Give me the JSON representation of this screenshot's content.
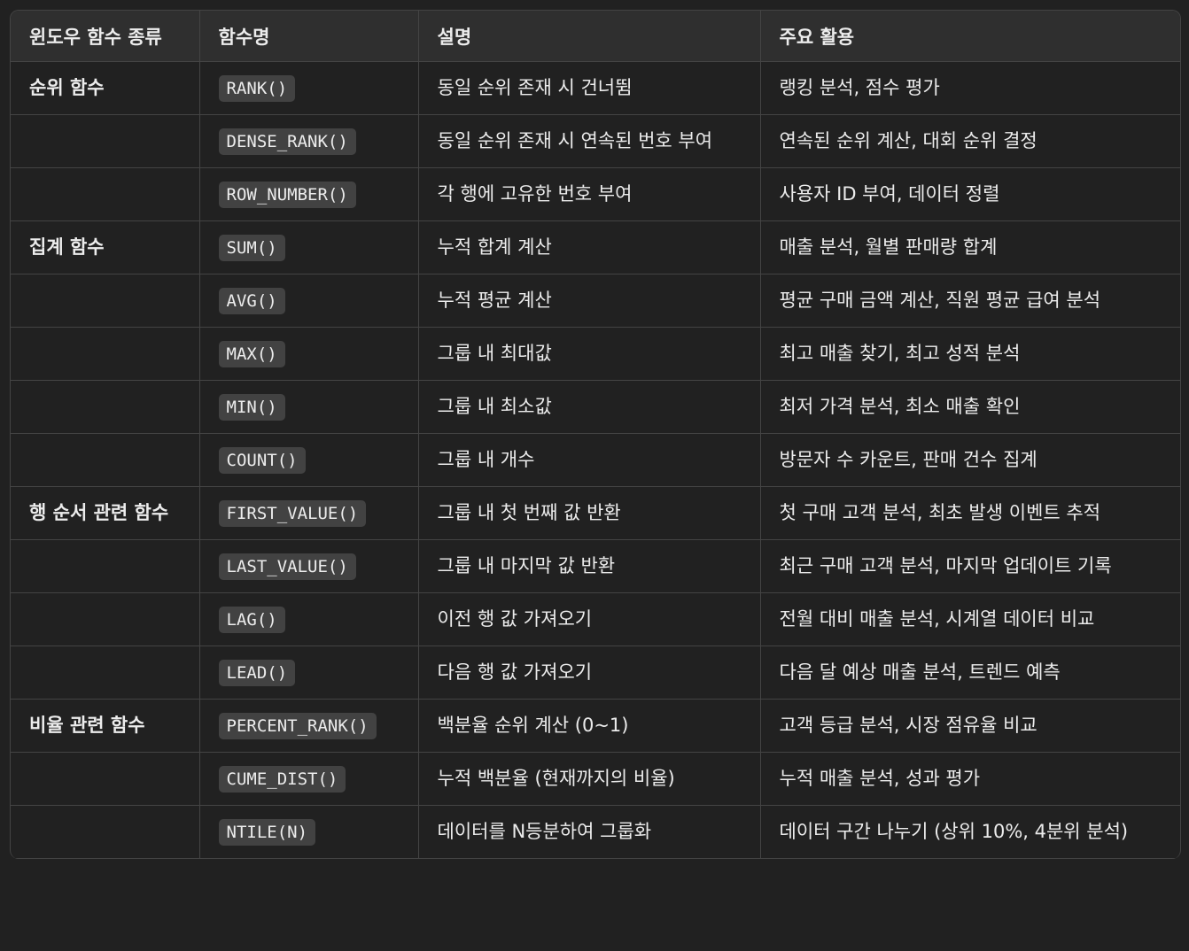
{
  "table": {
    "headers": [
      "윈도우 함수 종류",
      "함수명",
      "설명",
      "주요 활용"
    ],
    "rows": [
      {
        "category": "순위 함수",
        "function": "RANK()",
        "description": "동일 순위 존재 시 건너뜀",
        "usage": "랭킹 분석, 점수 평가"
      },
      {
        "category": "",
        "function": "DENSE_RANK()",
        "description": "동일 순위 존재 시 연속된 번호 부여",
        "usage": "연속된 순위 계산, 대회 순위 결정"
      },
      {
        "category": "",
        "function": "ROW_NUMBER()",
        "description": "각 행에 고유한 번호 부여",
        "usage": "사용자 ID 부여, 데이터 정렬"
      },
      {
        "category": "집계 함수",
        "function": "SUM()",
        "description": "누적 합계 계산",
        "usage": "매출 분석, 월별 판매량 합계"
      },
      {
        "category": "",
        "function": "AVG()",
        "description": "누적 평균 계산",
        "usage": "평균 구매 금액 계산, 직원 평균 급여 분석"
      },
      {
        "category": "",
        "function": "MAX()",
        "description": "그룹 내 최대값",
        "usage": "최고 매출 찾기, 최고 성적 분석"
      },
      {
        "category": "",
        "function": "MIN()",
        "description": "그룹 내 최소값",
        "usage": "최저 가격 분석, 최소 매출 확인"
      },
      {
        "category": "",
        "function": "COUNT()",
        "description": "그룹 내 개수",
        "usage": "방문자 수 카운트, 판매 건수 집계"
      },
      {
        "category": "행 순서 관련 함수",
        "function": "FIRST_VALUE()",
        "description": "그룹 내 첫 번째 값 반환",
        "usage": "첫 구매 고객 분석, 최초 발생 이벤트 추적"
      },
      {
        "category": "",
        "function": "LAST_VALUE()",
        "description": "그룹 내 마지막 값 반환",
        "usage": "최근 구매 고객 분석, 마지막 업데이트 기록"
      },
      {
        "category": "",
        "function": "LAG()",
        "description": "이전 행 값 가져오기",
        "usage": "전월 대비 매출 분석, 시계열 데이터 비교"
      },
      {
        "category": "",
        "function": "LEAD()",
        "description": "다음 행 값 가져오기",
        "usage": "다음 달 예상 매출 분석, 트렌드 예측"
      },
      {
        "category": "비율 관련 함수",
        "function": "PERCENT_RANK()",
        "description": "백분율 순위 계산 (0~1)",
        "usage": "고객 등급 분석, 시장 점유율 비교"
      },
      {
        "category": "",
        "function": "CUME_DIST()",
        "description": "누적 백분율 (현재까지의 비율)",
        "usage": "누적 매출 분석, 성과 평가"
      },
      {
        "category": "",
        "function": "NTILE(N)",
        "description": "데이터를 N등분하여 그룹화",
        "usage": "데이터 구간 나누기 (상위 10%, 4분위 분석)"
      }
    ]
  }
}
